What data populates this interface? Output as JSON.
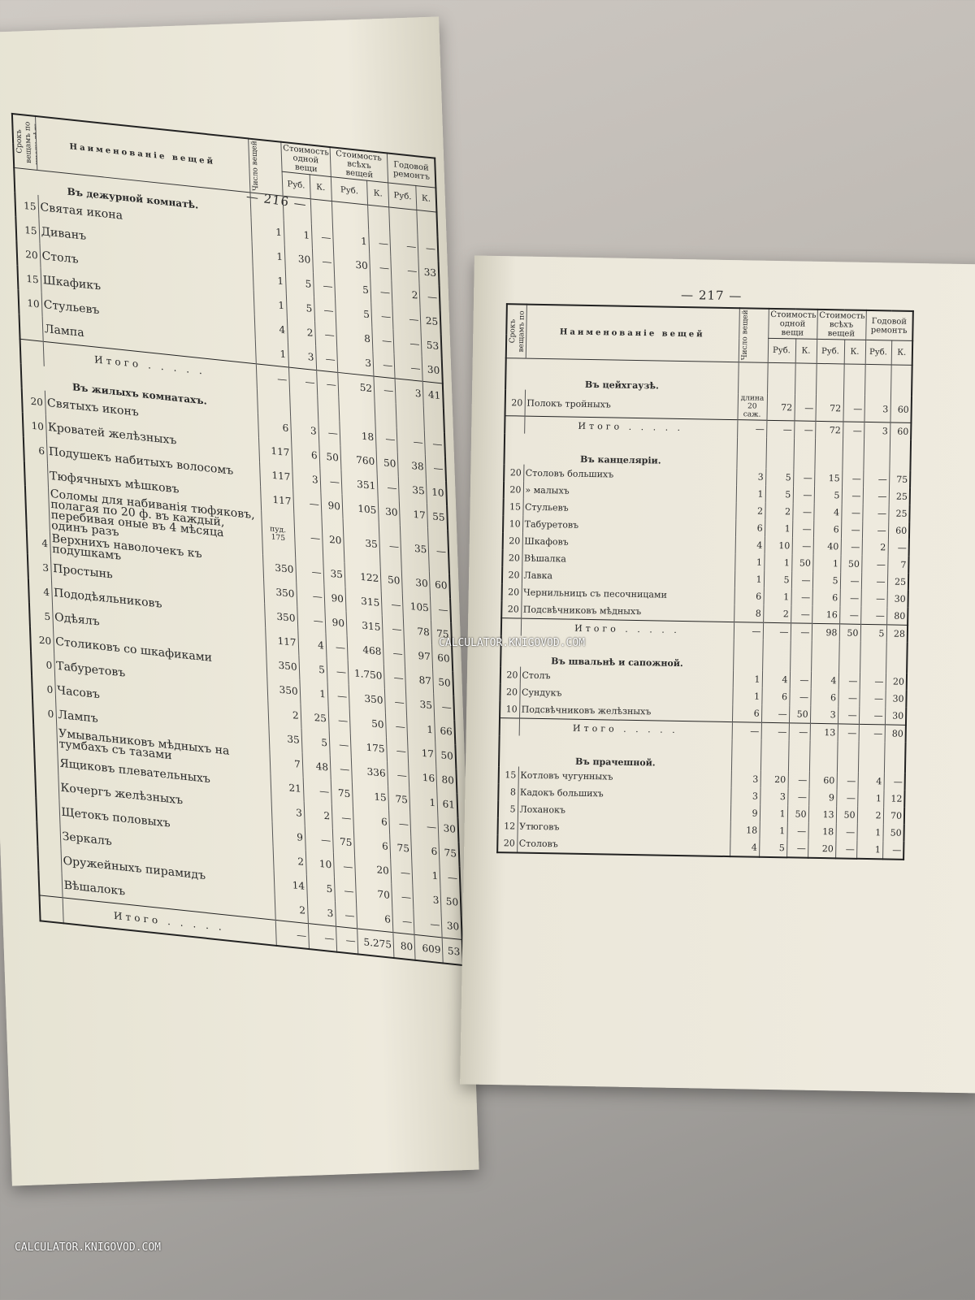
{
  "watermark": "CALCULATOR.KNIGOVOD.COM",
  "headers": {
    "srok": "Срокъ вещамъ по числу лѣтъ",
    "name": "Наименованіе вещей",
    "qty": "Число вещей",
    "cost_one": "Стоимость одной вещи",
    "cost_all": "Стоимость всѣхъ вещей",
    "repair": "Годовой ремонтъ",
    "rub": "Руб.",
    "kop": "К."
  },
  "left_page": {
    "page_number": "— 216 —",
    "sections": [
      {
        "title": "Въ дежурной комнатѣ.",
        "rows": [
          [
            "15",
            "Святая икона",
            "1",
            "1",
            "—",
            "1",
            "—",
            "—",
            "—"
          ],
          [
            "15",
            "Диванъ",
            "1",
            "30",
            "—",
            "30",
            "—",
            "—",
            "33"
          ],
          [
            "20",
            "Столъ",
            "1",
            "5",
            "—",
            "5",
            "—",
            "2",
            "—"
          ],
          [
            "15",
            "Шкафикъ",
            "1",
            "5",
            "—",
            "5",
            "—",
            "—",
            "25"
          ],
          [
            "10",
            "Стульевъ",
            "4",
            "2",
            "—",
            "8",
            "—",
            "—",
            "53"
          ],
          [
            "",
            "Лампа",
            "1",
            "3",
            "—",
            "3",
            "—",
            "—",
            "30"
          ]
        ],
        "total": [
          "Итого",
          "—",
          "—",
          "—",
          "52",
          "—",
          "3",
          "41"
        ]
      },
      {
        "title": "Въ жилыхъ комнатахъ.",
        "rows": [
          [
            "20",
            "Святыхъ иконъ",
            "6",
            "3",
            "—",
            "18",
            "—",
            "—",
            "—"
          ],
          [
            "10",
            "Кроватей желѣзныхъ",
            "117",
            "6",
            "50",
            "760",
            "50",
            "38",
            "—"
          ],
          [
            "6",
            "Подушекъ набитыхъ волосомъ",
            "117",
            "3",
            "—",
            "351",
            "—",
            "35",
            "10"
          ],
          [
            "",
            "Тюфячныхъ мѣшковъ",
            "117",
            "—",
            "90",
            "105",
            "30",
            "17",
            "55"
          ],
          [
            "",
            "Соломы для набиванія тюфяковъ, полагая по 20 ф. въ каждый, перебивая оные въ 4 мѣсяца одинъ разъ",
            "пуд. 175",
            "—",
            "20",
            "35",
            "—",
            "35",
            "—"
          ],
          [
            "4",
            "Верхнихъ наволочекъ къ подушкамъ",
            "350",
            "—",
            "35",
            "122",
            "50",
            "30",
            "60"
          ],
          [
            "3",
            "Простынь",
            "350",
            "—",
            "90",
            "315",
            "—",
            "105",
            "—"
          ],
          [
            "4",
            "Пододѣяльниковъ",
            "350",
            "—",
            "90",
            "315",
            "—",
            "78",
            "75"
          ],
          [
            "5",
            "Одѣялъ",
            "117",
            "4",
            "—",
            "468",
            "—",
            "97",
            "60"
          ],
          [
            "20",
            "Столиковъ со шкафиками",
            "350",
            "5",
            "—",
            "1.750",
            "—",
            "87",
            "50"
          ],
          [
            "0",
            "Табуретовъ",
            "350",
            "1",
            "—",
            "350",
            "—",
            "35",
            "—"
          ],
          [
            "0",
            "Часовъ",
            "2",
            "25",
            "—",
            "50",
            "—",
            "1",
            "66"
          ],
          [
            "0",
            "Лампъ",
            "35",
            "5",
            "—",
            "175",
            "—",
            "17",
            "50"
          ],
          [
            "",
            "Умывальниковъ мѣдныхъ на тумбахъ съ тазами",
            "7",
            "48",
            "—",
            "336",
            "—",
            "16",
            "80"
          ],
          [
            "",
            "Ящиковъ плевательныхъ",
            "21",
            "—",
            "75",
            "15",
            "75",
            "1",
            "61"
          ],
          [
            "",
            "Кочергъ желѣзныхъ",
            "3",
            "2",
            "—",
            "6",
            "—",
            "—",
            "30"
          ],
          [
            "",
            "Щетокъ половыхъ",
            "9",
            "—",
            "75",
            "6",
            "75",
            "6",
            "75"
          ],
          [
            "",
            "Зеркалъ",
            "2",
            "10",
            "—",
            "20",
            "—",
            "1",
            "—"
          ],
          [
            "",
            "Оружейныхъ пирамидъ",
            "14",
            "5",
            "—",
            "70",
            "—",
            "3",
            "50"
          ],
          [
            "",
            "Вѣшалокъ",
            "2",
            "3",
            "—",
            "6",
            "—",
            "—",
            "30"
          ]
        ],
        "total": [
          "Итого",
          "—",
          "—",
          "—",
          "5.275",
          "80",
          "609",
          "53"
        ]
      }
    ]
  },
  "right_page": {
    "page_number": "— 217 —",
    "sections": [
      {
        "title": "Въ цейхгаузѣ.",
        "rows": [
          [
            "20",
            "Полокъ тройныхъ",
            "длина 20 саж.",
            "72",
            "—",
            "72",
            "—",
            "3",
            "60"
          ]
        ],
        "total": [
          "Итого",
          "—",
          "—",
          "—",
          "72",
          "—",
          "3",
          "60"
        ]
      },
      {
        "title": "Въ канцеляріи.",
        "rows": [
          [
            "20",
            "Столовъ большихъ",
            "3",
            "5",
            "—",
            "15",
            "—",
            "—",
            "75"
          ],
          [
            "20",
            "» малыхъ",
            "1",
            "5",
            "—",
            "5",
            "—",
            "—",
            "25"
          ],
          [
            "15",
            "Стульевъ",
            "2",
            "2",
            "—",
            "4",
            "—",
            "—",
            "25"
          ],
          [
            "10",
            "Табуретовъ",
            "6",
            "1",
            "—",
            "6",
            "—",
            "—",
            "60"
          ],
          [
            "20",
            "Шкафовъ",
            "4",
            "10",
            "—",
            "40",
            "—",
            "2",
            "—"
          ],
          [
            "20",
            "Вѣшалка",
            "1",
            "1",
            "50",
            "1",
            "50",
            "—",
            "7"
          ],
          [
            "20",
            "Лавка",
            "1",
            "5",
            "—",
            "5",
            "—",
            "—",
            "25"
          ],
          [
            "20",
            "Чернильницъ съ песочницами",
            "6",
            "1",
            "—",
            "6",
            "—",
            "—",
            "30"
          ],
          [
            "20",
            "Подсвѣчниковъ мѣдныхъ",
            "8",
            "2",
            "—",
            "16",
            "—",
            "—",
            "80"
          ]
        ],
        "total": [
          "Итого",
          "—",
          "—",
          "—",
          "98",
          "50",
          "5",
          "28"
        ]
      },
      {
        "title": "Въ швальнѣ и сапожной.",
        "rows": [
          [
            "20",
            "Столъ",
            "1",
            "4",
            "—",
            "4",
            "—",
            "—",
            "20"
          ],
          [
            "20",
            "Сундукъ",
            "1",
            "6",
            "—",
            "6",
            "—",
            "—",
            "30"
          ],
          [
            "10",
            "Подсвѣчниковъ желѣзныхъ",
            "6",
            "—",
            "50",
            "3",
            "—",
            "—",
            "30"
          ]
        ],
        "total": [
          "Итого",
          "—",
          "—",
          "—",
          "13",
          "—",
          "—",
          "80"
        ]
      },
      {
        "title": "Въ прачешной.",
        "rows": [
          [
            "15",
            "Котловъ чугунныхъ",
            "3",
            "20",
            "—",
            "60",
            "—",
            "4",
            "—"
          ],
          [
            "8",
            "Кадокъ большихъ",
            "3",
            "3",
            "—",
            "9",
            "—",
            "1",
            "12"
          ],
          [
            "5",
            "Лоханокъ",
            "9",
            "1",
            "50",
            "13",
            "50",
            "2",
            "70"
          ],
          [
            "12",
            "Утюговъ",
            "18",
            "1",
            "—",
            "18",
            "—",
            "1",
            "50"
          ],
          [
            "20",
            "Столовъ",
            "4",
            "5",
            "—",
            "20",
            "—",
            "1",
            "—"
          ]
        ]
      }
    ]
  }
}
